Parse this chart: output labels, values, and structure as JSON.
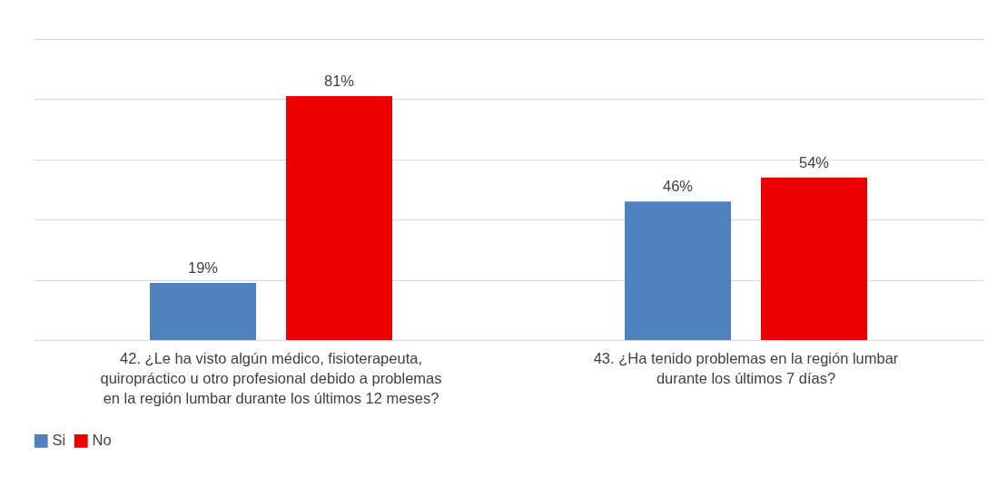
{
  "chart_data": {
    "type": "bar",
    "categories": [
      "42. ¿Le ha visto algún médico, fisioterapeuta, quiropráctico u otro profesional debido a problemas en la región lumbar durante los últimos 12 meses?",
      "43. ¿Ha tenido problemas en la región lumbar durante los últimos 7 días?"
    ],
    "series": [
      {
        "name": "Si",
        "color": "#4f81bd",
        "values": [
          19,
          46
        ],
        "value_labels": [
          "19%",
          "46%"
        ]
      },
      {
        "name": "No",
        "color": "#ee0000",
        "values": [
          81,
          54
        ],
        "value_labels": [
          "81%",
          "54%"
        ]
      }
    ],
    "ylim": [
      0,
      100
    ],
    "yticks": [
      {
        "value": 0,
        "label": null
      },
      {
        "value": 20,
        "label": null
      },
      {
        "value": 40,
        "label": null
      },
      {
        "value": 60,
        "label": null
      },
      {
        "value": 80,
        "label": null
      },
      {
        "value": 100,
        "label": null
      }
    ],
    "grid": "y",
    "legend": "bottom"
  }
}
